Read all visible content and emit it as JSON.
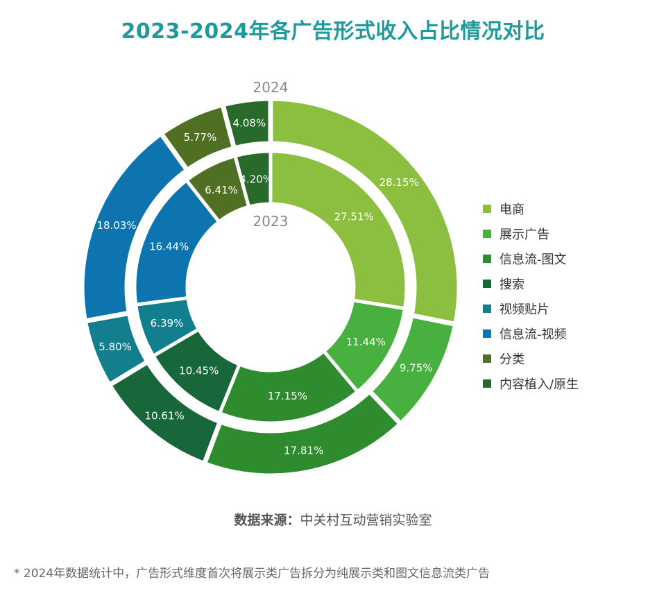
{
  "title": "2023-2024年各广告形式收入占比情况对比",
  "source_label": "数据来源：",
  "source_value": "中关村互动营销实验室",
  "footnote": "* 2024年数据统计中，广告形式维度首次将展示类广告拆分为纯展示类和图文信息流类广告",
  "chart_data": {
    "type": "pie",
    "variant": "nested-donut",
    "categories": [
      "电商",
      "展示广告",
      "信息流-图文",
      "搜索",
      "视频贴片",
      "信息流-视频",
      "分类",
      "内容植入/原生"
    ],
    "colors": [
      "#8cbf3f",
      "#47b03e",
      "#2e8b2e",
      "#17673a",
      "#137e8e",
      "#0d74b0",
      "#4f6f22",
      "#276a2a"
    ],
    "series": [
      {
        "name": "2024",
        "values": [
          28.15,
          9.75,
          17.81,
          10.61,
          5.8,
          18.03,
          5.77,
          4.08
        ],
        "labels": [
          "28.15%",
          "9.75%",
          "17.81%",
          "10.61%",
          "5.80%",
          "18.03%",
          "5.77%",
          "4.08%"
        ]
      },
      {
        "name": "2023",
        "values": [
          27.51,
          11.44,
          17.15,
          10.45,
          6.39,
          16.44,
          6.41,
          4.2
        ],
        "labels": [
          "27.51%",
          "11.44%",
          "17.15%",
          "10.45%",
          "6.39%",
          "16.44%",
          "6.41%",
          "4.20%"
        ]
      }
    ],
    "legend_position": "right"
  }
}
